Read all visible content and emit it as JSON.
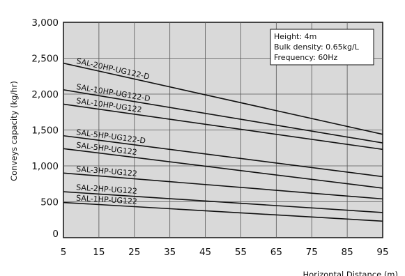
{
  "chart_data": {
    "type": "line",
    "xlabel": "Horizontal Distance (m)",
    "ylabel": "Conveys capacity (kg/hr)",
    "xlim": [
      5,
      95
    ],
    "ylim": [
      0,
      3000
    ],
    "x_ticks": [
      "5",
      "15",
      "25",
      "35",
      "45",
      "55",
      "65",
      "75",
      "85",
      "95"
    ],
    "y_ticks": [
      "0",
      "500",
      "1,000",
      "1,500",
      "2,000",
      "2,500",
      "3,000"
    ],
    "grid": true,
    "notes": [
      "Height: 4m",
      "Bulk density: 0.65kg/L",
      "Frequency: 60Hz"
    ],
    "series": [
      {
        "name": "SAL-20HP-UG122-D",
        "x": [
          5,
          95
        ],
        "values": [
          2430,
          1440
        ],
        "color": "#111111"
      },
      {
        "name": "SAL-10HP-UG122-D",
        "x": [
          5,
          95
        ],
        "values": [
          2060,
          1320
        ],
        "color": "#111111"
      },
      {
        "name": "SAL-10HP-UG122",
        "x": [
          5,
          95
        ],
        "values": [
          1860,
          1230
        ],
        "color": "#111111"
      },
      {
        "name": "SAL-5HP-UG122-D",
        "x": [
          5,
          95
        ],
        "values": [
          1420,
          850
        ],
        "color": "#111111"
      },
      {
        "name": "SAL-5HP-UG122",
        "x": [
          5,
          95
        ],
        "values": [
          1240,
          690
        ],
        "color": "#111111"
      },
      {
        "name": "SAL-3HP-UG122",
        "x": [
          5,
          95
        ],
        "values": [
          900,
          540
        ],
        "color": "#111111"
      },
      {
        "name": "SAL-2HP-UG122",
        "x": [
          5,
          95
        ],
        "values": [
          640,
          350
        ],
        "color": "#111111"
      },
      {
        "name": "SAL-1HP-UG122",
        "x": [
          5,
          95
        ],
        "values": [
          490,
          230
        ],
        "color": "#111111"
      }
    ]
  }
}
